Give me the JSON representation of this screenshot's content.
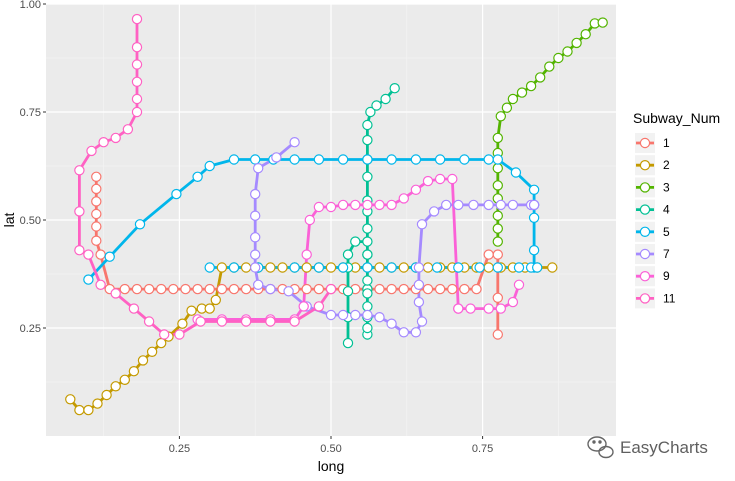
{
  "chart_data": {
    "type": "line",
    "xlabel": "long",
    "ylabel": "lat",
    "xlim": [
      0.03,
      0.97
    ],
    "ylim": [
      0.0,
      1.0
    ],
    "x_ticks": [
      0.25,
      0.5,
      0.75
    ],
    "x_tick_labels": [
      "0.25",
      "0.50",
      "0.75"
    ],
    "y_ticks": [
      0.25,
      0.5,
      0.75,
      1.0
    ],
    "y_tick_labels": [
      "0.25",
      "0.50",
      "0.75",
      "1.00"
    ],
    "grid": true,
    "markers": "open-circle",
    "legend": {
      "title": "Subway_Num",
      "position": "right"
    },
    "series": [
      {
        "name": "1",
        "color": "#F8766D",
        "x": [
          0.113,
          0.113,
          0.113,
          0.113,
          0.113,
          0.113,
          0.12,
          0.135,
          0.16,
          0.18,
          0.2,
          0.22,
          0.24,
          0.26,
          0.28,
          0.3,
          0.32,
          0.34,
          0.36,
          0.38,
          0.4,
          0.42,
          0.44,
          0.46,
          0.48,
          0.5,
          0.52,
          0.54,
          0.56,
          0.58,
          0.6,
          0.62,
          0.64,
          0.66,
          0.68,
          0.7,
          0.72,
          0.74,
          0.76,
          0.775,
          0.775,
          0.775
        ],
        "y": [
          0.6,
          0.572,
          0.543,
          0.514,
          0.485,
          0.452,
          0.42,
          0.34,
          0.34,
          0.34,
          0.34,
          0.34,
          0.34,
          0.34,
          0.34,
          0.34,
          0.34,
          0.34,
          0.34,
          0.34,
          0.34,
          0.34,
          0.34,
          0.34,
          0.34,
          0.34,
          0.34,
          0.34,
          0.34,
          0.34,
          0.34,
          0.34,
          0.34,
          0.34,
          0.34,
          0.34,
          0.34,
          0.34,
          0.42,
          0.42,
          0.32,
          0.235
        ]
      },
      {
        "name": "2",
        "color": "#C49A00",
        "x": [
          0.07,
          0.085,
          0.1,
          0.115,
          0.13,
          0.145,
          0.16,
          0.175,
          0.19,
          0.205,
          0.22,
          0.232,
          0.255,
          0.27,
          0.287,
          0.3,
          0.31,
          0.32,
          0.34,
          0.36,
          0.38,
          0.4,
          0.42,
          0.44,
          0.46,
          0.48,
          0.5,
          0.52,
          0.54,
          0.56,
          0.58,
          0.6,
          0.62,
          0.64,
          0.66,
          0.68,
          0.7,
          0.72,
          0.74,
          0.76,
          0.78,
          0.8,
          0.82,
          0.84,
          0.865
        ],
        "y": [
          0.085,
          0.06,
          0.06,
          0.075,
          0.095,
          0.115,
          0.13,
          0.15,
          0.175,
          0.195,
          0.215,
          0.23,
          0.26,
          0.29,
          0.295,
          0.295,
          0.315,
          0.39,
          0.39,
          0.39,
          0.39,
          0.39,
          0.39,
          0.39,
          0.39,
          0.39,
          0.39,
          0.39,
          0.39,
          0.39,
          0.39,
          0.39,
          0.39,
          0.39,
          0.39,
          0.39,
          0.39,
          0.39,
          0.39,
          0.39,
          0.39,
          0.39,
          0.39,
          0.39,
          0.39
        ]
      },
      {
        "name": "3",
        "color": "#53B400",
        "x": [
          0.775,
          0.775,
          0.775,
          0.775,
          0.775,
          0.775,
          0.775,
          0.775,
          0.78,
          0.79,
          0.8,
          0.815,
          0.83,
          0.845,
          0.86,
          0.875,
          0.89,
          0.905,
          0.92,
          0.935,
          0.948
        ],
        "y": [
          0.45,
          0.48,
          0.51,
          0.55,
          0.58,
          0.62,
          0.655,
          0.69,
          0.74,
          0.76,
          0.78,
          0.795,
          0.81,
          0.83,
          0.855,
          0.875,
          0.89,
          0.91,
          0.93,
          0.955,
          0.957
        ]
      },
      {
        "name": "4",
        "color": "#00C094",
        "x": [
          0.528,
          0.528,
          0.528,
          0.528,
          0.528,
          0.54,
          0.56,
          0.56,
          0.56,
          0.56,
          0.56,
          0.56,
          0.56,
          0.56,
          0.56,
          0.56,
          0.56,
          0.56,
          0.56,
          0.56,
          0.56,
          0.56,
          0.56,
          0.56,
          0.565,
          0.575,
          0.59,
          0.605
        ],
        "y": [
          0.215,
          0.275,
          0.335,
          0.39,
          0.42,
          0.45,
          0.45,
          0.42,
          0.39,
          0.34,
          0.275,
          0.235,
          0.25,
          0.3,
          0.33,
          0.36,
          0.42,
          0.48,
          0.52,
          0.545,
          0.6,
          0.64,
          0.685,
          0.72,
          0.75,
          0.765,
          0.78,
          0.805
        ]
      },
      {
        "name": "5",
        "color": "#00B6EB",
        "x": [
          0.1,
          0.135,
          0.185,
          0.245,
          0.28,
          0.3,
          0.34,
          0.375,
          0.405,
          0.44,
          0.48,
          0.52,
          0.56,
          0.6,
          0.64,
          0.68,
          0.72,
          0.76,
          0.775,
          0.805,
          0.835,
          0.835,
          0.835,
          0.835,
          0.835,
          0.83,
          0.84,
          0.81,
          0.775,
          0.745,
          0.71,
          0.675,
          0.64,
          0.6,
          0.56,
          0.52,
          0.48,
          0.44,
          0.38,
          0.34,
          0.3
        ],
        "y": [
          0.362,
          0.415,
          0.49,
          0.56,
          0.6,
          0.625,
          0.64,
          0.64,
          0.64,
          0.64,
          0.64,
          0.64,
          0.64,
          0.64,
          0.64,
          0.64,
          0.64,
          0.64,
          0.64,
          0.61,
          0.57,
          0.535,
          0.505,
          0.43,
          0.39,
          0.39,
          0.39,
          0.39,
          0.39,
          0.39,
          0.39,
          0.39,
          0.39,
          0.39,
          0.39,
          0.39,
          0.39,
          0.39,
          0.39,
          0.39,
          0.39
        ]
      },
      {
        "name": "7",
        "color": "#A58AFF",
        "x": [
          0.44,
          0.41,
          0.38,
          0.375,
          0.375,
          0.375,
          0.375,
          0.375,
          0.38,
          0.4,
          0.43,
          0.46,
          0.5,
          0.52,
          0.54,
          0.56,
          0.58,
          0.6,
          0.62,
          0.64,
          0.65,
          0.645,
          0.645,
          0.645,
          0.65,
          0.67,
          0.69,
          0.71,
          0.735,
          0.76,
          0.78,
          0.8,
          0.83,
          0.835,
          0.835
        ],
        "y": [
          0.68,
          0.645,
          0.62,
          0.56,
          0.51,
          0.46,
          0.42,
          0.39,
          0.35,
          0.34,
          0.335,
          0.3,
          0.28,
          0.28,
          0.28,
          0.28,
          0.275,
          0.26,
          0.24,
          0.24,
          0.265,
          0.31,
          0.35,
          0.39,
          0.49,
          0.52,
          0.535,
          0.535,
          0.535,
          0.535,
          0.535,
          0.535,
          0.535,
          0.535,
          0.535
        ]
      },
      {
        "name": "9",
        "color": "#FB61D7",
        "x": [
          0.28,
          0.32,
          0.36,
          0.4,
          0.44,
          0.455,
          0.46,
          0.465,
          0.48,
          0.5,
          0.52,
          0.54,
          0.56,
          0.58,
          0.6,
          0.62,
          0.64,
          0.66,
          0.68,
          0.7,
          0.71,
          0.71,
          0.73,
          0.76,
          0.78,
          0.8,
          0.81
        ],
        "y": [
          0.27,
          0.27,
          0.27,
          0.27,
          0.27,
          0.3,
          0.42,
          0.5,
          0.53,
          0.53,
          0.535,
          0.535,
          0.535,
          0.535,
          0.535,
          0.55,
          0.57,
          0.59,
          0.595,
          0.595,
          0.295,
          0.295,
          0.295,
          0.295,
          0.295,
          0.31,
          0.35
        ]
      },
      {
        "name": "11",
        "color": "#FF61C3",
        "x": [
          0.18,
          0.18,
          0.18,
          0.18,
          0.18,
          0.18,
          0.165,
          0.145,
          0.125,
          0.105,
          0.085,
          0.085,
          0.085,
          0.1,
          0.12,
          0.145,
          0.175,
          0.2,
          0.225,
          0.25,
          0.285,
          0.32,
          0.36,
          0.4,
          0.44,
          0.48,
          0.5
        ],
        "y": [
          0.965,
          0.9,
          0.86,
          0.82,
          0.78,
          0.75,
          0.71,
          0.69,
          0.68,
          0.66,
          0.615,
          0.52,
          0.43,
          0.42,
          0.35,
          0.33,
          0.295,
          0.265,
          0.235,
          0.235,
          0.265,
          0.265,
          0.265,
          0.265,
          0.265,
          0.3,
          0.34
        ]
      }
    ]
  },
  "watermark": {
    "text": "EasyCharts",
    "icon": "wechat-icon"
  }
}
